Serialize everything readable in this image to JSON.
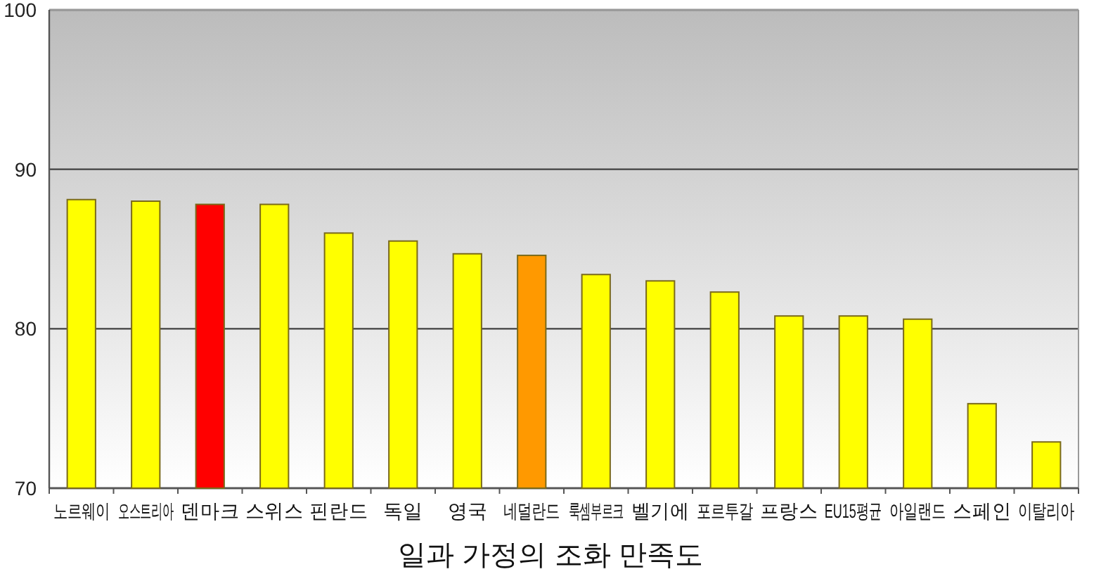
{
  "chart_data": {
    "type": "bar",
    "xlabel": "일과 가정의 조화 만족도",
    "categories": [
      "노르웨이",
      "오스트리아",
      "덴마크",
      "스위스",
      "핀란드",
      "독일",
      "영국",
      "네덜란드",
      "룩셈부르크",
      "벨기에",
      "포르투갈",
      "프랑스",
      "EU15평균",
      "아일랜드",
      "스페인",
      "이탈리아"
    ],
    "values": [
      88.1,
      88.0,
      87.8,
      87.8,
      86.0,
      85.5,
      84.7,
      84.6,
      83.4,
      83.0,
      82.3,
      80.8,
      80.8,
      80.6,
      75.3,
      72.9
    ],
    "colors": [
      "#ffff00",
      "#ffff00",
      "#ff0000",
      "#ffff00",
      "#ffff00",
      "#ffff00",
      "#ffff00",
      "#ff9900",
      "#ffff00",
      "#ffff00",
      "#ffff00",
      "#ffff00",
      "#ffff00",
      "#ffff00",
      "#ffff00",
      "#ffff00"
    ],
    "ylim": [
      70,
      100
    ],
    "yticks": [
      70,
      80,
      90,
      100
    ],
    "grid": "y"
  }
}
